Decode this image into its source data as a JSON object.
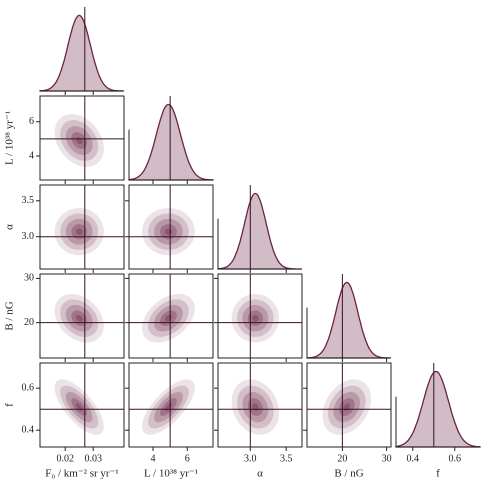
{
  "chart_data": {
    "type": "corner",
    "color": "#6b2346",
    "truth_color": "#3a0f22",
    "parameters": [
      {
        "label": "F₀ / km⁻² sr yr⁻¹",
        "truth": 0.027,
        "mean": 0.025,
        "sd": 0.004,
        "lim": [
          0.011,
          0.041
        ],
        "ticks": [
          0.02,
          0.03
        ]
      },
      {
        "label": "L / 10³⁸ yr⁻¹",
        "truth": 5.0,
        "mean": 4.9,
        "sd": 0.7,
        "lim": [
          2.6,
          7.5
        ],
        "ticks": [
          4,
          6
        ]
      },
      {
        "label": "α",
        "truth": 3.0,
        "mean": 3.07,
        "sd": 0.15,
        "lim": [
          2.55,
          3.72
        ],
        "ticks": [
          {
            "value": 3.0,
            "label": "3.0"
          },
          3.5
        ]
      },
      {
        "label": "B / nG",
        "truth": 20,
        "mean": 21,
        "sd": 2.5,
        "lim": [
          12,
          31
        ],
        "ticks": [
          20,
          30
        ]
      },
      {
        "label": "f",
        "truth": 0.5,
        "mean": 0.51,
        "sd": 0.06,
        "lim": [
          0.32,
          0.72
        ],
        "ticks": [
          0.4,
          0.6
        ]
      }
    ],
    "correlation": [
      [
        1,
        -0.3,
        0,
        -0.3,
        -0.7
      ],
      [
        -0.3,
        1,
        0,
        0.4,
        0.7
      ],
      [
        0,
        0,
        1,
        0,
        -0.2
      ],
      [
        -0.3,
        0.4,
        0,
        1,
        0.3
      ],
      [
        -0.7,
        0.7,
        -0.2,
        0.3,
        1
      ]
    ]
  }
}
